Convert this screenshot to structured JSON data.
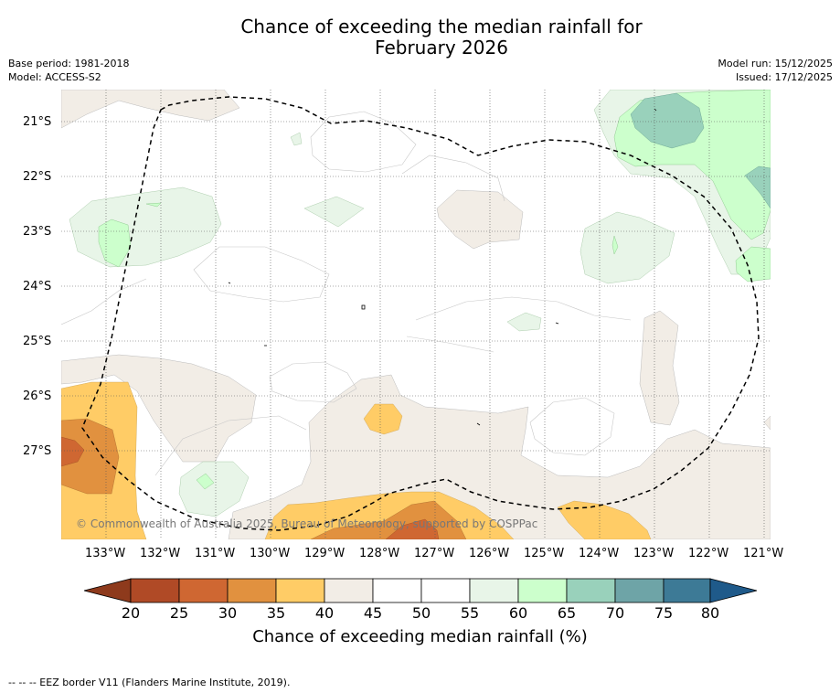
{
  "title_line1": "Chance of exceeding the median rainfall for",
  "title_line2": "February 2026",
  "meta": {
    "base_period": "Base period: 1981-2018",
    "model": "Model: ACCESS-S2",
    "model_run": "Model run: 15/12/2025",
    "issued": "Issued: 17/12/2025"
  },
  "lat_labels": [
    "21°S",
    "22°S",
    "23°S",
    "24°S",
    "25°S",
    "26°S",
    "27°S"
  ],
  "lon_labels": [
    "133°W",
    "132°W",
    "131°W",
    "130°W",
    "129°W",
    "128°W",
    "127°W",
    "126°W",
    "125°W",
    "124°W",
    "123°W",
    "122°W",
    "121°W"
  ],
  "copyright": "© Commonwealth of Australia 2025, Bureau of Meteorology, supported by COSPPac",
  "colorbar": {
    "ticks": [
      "20",
      "25",
      "30",
      "35",
      "40",
      "45",
      "50",
      "55",
      "60",
      "65",
      "70",
      "75",
      "80"
    ],
    "label": "Chance of exceeding median rainfall (%)",
    "colors": [
      "#8e3a1c",
      "#b04a26",
      "#cf6732",
      "#e1913f",
      "#ffcc66",
      "#f2ede6",
      "#ffffff",
      "#ffffff",
      "#e8f5e8",
      "#ccffcc",
      "#99d1bb",
      "#6ea4a7",
      "#3d7a96",
      "#1f5a8a"
    ]
  },
  "footer": "--  --  -- EEZ border V11 (Flanders Marine Institute, 2019)."
}
